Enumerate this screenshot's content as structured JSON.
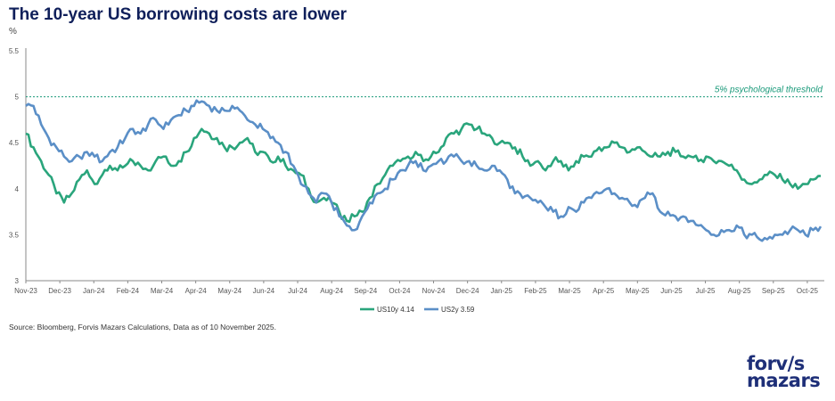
{
  "chart_data": {
    "type": "line",
    "title": "The 10-year US borrowing costs are lower",
    "ylabel": "%",
    "ylim": [
      3,
      5.5
    ],
    "yticks": [
      "3",
      "3.5",
      "4",
      "4.5",
      "5",
      "5.5"
    ],
    "xticks": [
      "Nov-23",
      "Dec-23",
      "Jan-24",
      "Feb-24",
      "Mar-24",
      "Apr-24",
      "May-24",
      "Jun-24",
      "Jul-24",
      "Aug-24",
      "Sep-24",
      "Oct-24",
      "Nov-24",
      "Dec-24",
      "Jan-25",
      "Feb-25",
      "Mar-25",
      "Apr-25",
      "May-25",
      "Jun-25",
      "Jul-25",
      "Aug-25",
      "Sep-25",
      "Oct-25"
    ],
    "grid": false,
    "legend_position": "bottom-center",
    "threshold": {
      "value": 5,
      "label": "5% psychological threshold",
      "color": "#1a9a7a"
    },
    "series": [
      {
        "name": "US10y 4.14",
        "color": "#2aa57c",
        "values": [
          4.6,
          4.45,
          4.3,
          4.15,
          3.95,
          3.85,
          3.95,
          4.1,
          4.2,
          4.05,
          4.15,
          4.25,
          4.2,
          4.25,
          4.3,
          4.25,
          4.2,
          4.3,
          4.35,
          4.25,
          4.3,
          4.4,
          4.55,
          4.65,
          4.6,
          4.55,
          4.45,
          4.45,
          4.5,
          4.55,
          4.4,
          4.4,
          4.3,
          4.35,
          4.25,
          4.2,
          4.15,
          4.0,
          3.85,
          3.9,
          3.85,
          3.75,
          3.65,
          3.7,
          3.75,
          3.9,
          4.05,
          4.15,
          4.25,
          4.3,
          4.35,
          4.4,
          4.3,
          4.35,
          4.4,
          4.55,
          4.6,
          4.65,
          4.7,
          4.65,
          4.6,
          4.55,
          4.5,
          4.5,
          4.45,
          4.35,
          4.25,
          4.3,
          4.2,
          4.3,
          4.3,
          4.2,
          4.3,
          4.35,
          4.35,
          4.45,
          4.45,
          4.5,
          4.45,
          4.4,
          4.45,
          4.4,
          4.35,
          4.35,
          4.4,
          4.4,
          4.35,
          4.35,
          4.3,
          4.35,
          4.3,
          4.3,
          4.25,
          4.2,
          4.1,
          4.05,
          4.1,
          4.15,
          4.15,
          4.1,
          4.05,
          4.0,
          4.05,
          4.1,
          4.14
        ]
      },
      {
        "name": "US2y 3.59",
        "color": "#5b8fc7",
        "values": [
          4.9,
          4.9,
          4.7,
          4.55,
          4.45,
          4.35,
          4.3,
          4.35,
          4.4,
          4.35,
          4.3,
          4.4,
          4.45,
          4.55,
          4.65,
          4.6,
          4.7,
          4.75,
          4.65,
          4.75,
          4.8,
          4.85,
          4.9,
          4.95,
          4.9,
          4.85,
          4.85,
          4.9,
          4.85,
          4.75,
          4.7,
          4.65,
          4.55,
          4.5,
          4.4,
          4.25,
          4.05,
          3.95,
          3.85,
          3.95,
          3.85,
          3.7,
          3.6,
          3.55,
          3.7,
          3.85,
          3.95,
          4.0,
          4.1,
          4.2,
          4.25,
          4.3,
          4.2,
          4.25,
          4.3,
          4.3,
          4.35,
          4.3,
          4.3,
          4.25,
          4.2,
          4.25,
          4.2,
          4.1,
          3.95,
          3.9,
          3.9,
          3.85,
          3.8,
          3.75,
          3.7,
          3.8,
          3.75,
          3.85,
          3.9,
          3.95,
          4.0,
          3.95,
          3.9,
          3.85,
          3.8,
          3.9,
          3.95,
          3.75,
          3.75,
          3.7,
          3.7,
          3.65,
          3.6,
          3.55,
          3.5,
          3.55,
          3.55,
          3.6,
          3.5,
          3.5,
          3.45,
          3.45,
          3.5,
          3.5,
          3.55,
          3.55,
          3.5,
          3.55,
          3.59
        ]
      }
    ],
    "source": "Source: Bloomberg, Forvis Mazars Calculations, Data as of 10 November 2025."
  },
  "logo": {
    "line1": "forv/s",
    "line2": "mazars"
  }
}
